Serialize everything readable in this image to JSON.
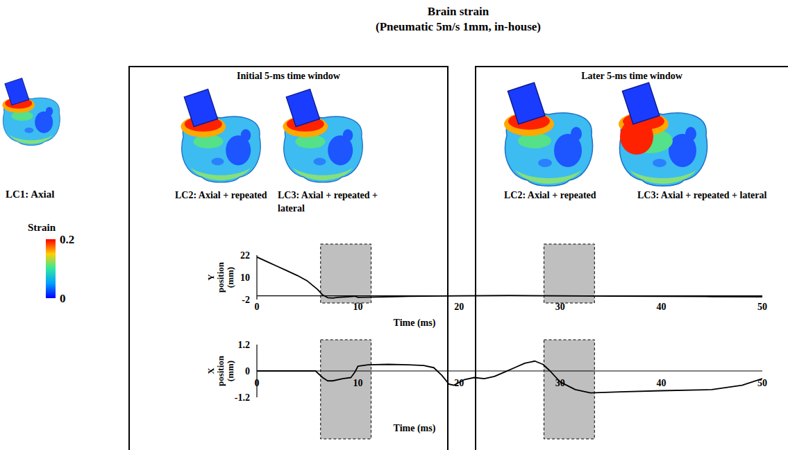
{
  "figure": {
    "title": "Brain strain",
    "subtitle": "(Pneumatic 5m/s 1mm, in-house)"
  },
  "lc1_label": "LC1: Axial",
  "colorbar": {
    "label": "Strain",
    "range": [
      0,
      0.2
    ],
    "ticks": [
      0,
      0.2
    ]
  },
  "panels": [
    {
      "title": "Initial 5-ms time window",
      "labels": [
        "LC2: Axial + repeated",
        "LC3: Axial + repeated + lateral"
      ]
    },
    {
      "title": "Later 5-ms time window",
      "labels": [
        "LC2: Axial + repeated",
        "LC3: Axial + repeated + lateral"
      ]
    }
  ],
  "time_windows": [
    [
      6.3,
      11.3
    ],
    [
      28.4,
      33.4
    ]
  ],
  "chart_data": [
    {
      "type": "line",
      "x_label": "Time (ms)",
      "y_label": "Y position (mm)",
      "xlim": [
        0,
        50
      ],
      "xticks": [
        0,
        10,
        20,
        30,
        40,
        50
      ],
      "ylim": [
        -2,
        22
      ],
      "yticks": [
        -2,
        10,
        22
      ],
      "grid": false,
      "x": [
        0,
        1,
        2,
        3,
        4,
        5,
        6,
        6.5,
        7,
        7.5,
        8,
        9,
        9.7,
        10,
        11,
        13,
        15,
        20,
        25,
        30,
        35,
        40,
        45,
        50
      ],
      "series": [
        {
          "color": "#000000",
          "values": [
            21,
            18.5,
            16,
            13.5,
            11,
            8,
            3.5,
            0.5,
            -1,
            -1.2,
            -0.8,
            -0.5,
            -0.2,
            -0.8,
            -0.7,
            -0.5,
            -0.3,
            0,
            0.2,
            0,
            -0.2,
            -0.3,
            -0.4,
            -0.5
          ]
        }
      ]
    },
    {
      "type": "line",
      "x_label": "Time (ms)",
      "y_label": "X position (mm)",
      "xlim": [
        0,
        50
      ],
      "xticks": [
        0,
        10,
        20,
        30,
        40,
        50
      ],
      "ylim": [
        -1.2,
        1.2
      ],
      "yticks": [
        -1.2,
        0,
        1.2
      ],
      "grid": false,
      "x": [
        0,
        5,
        5.8,
        6.5,
        7,
        7.5,
        8.5,
        9.3,
        9.7,
        10,
        11,
        13,
        15,
        16.5,
        17.5,
        18.3,
        19,
        19.5,
        20.5,
        21.5,
        22.5,
        23.5,
        24.5,
        25.5,
        26.5,
        27.5,
        28.3,
        29,
        30,
        31.5,
        33,
        36,
        40,
        45,
        48,
        50
      ],
      "series": [
        {
          "color": "#000000",
          "values": [
            0,
            0,
            0,
            -0.3,
            -0.45,
            -0.45,
            -0.35,
            -0.3,
            -0.05,
            0.22,
            0.28,
            0.3,
            0.28,
            0.25,
            0.15,
            -0.2,
            -0.6,
            -0.65,
            -0.4,
            -0.3,
            -0.35,
            -0.25,
            -0.05,
            0.15,
            0.35,
            0.45,
            0.3,
            0,
            -0.5,
            -0.85,
            -1.0,
            -0.95,
            -0.9,
            -0.85,
            -0.65,
            -0.35
          ]
        }
      ]
    }
  ]
}
